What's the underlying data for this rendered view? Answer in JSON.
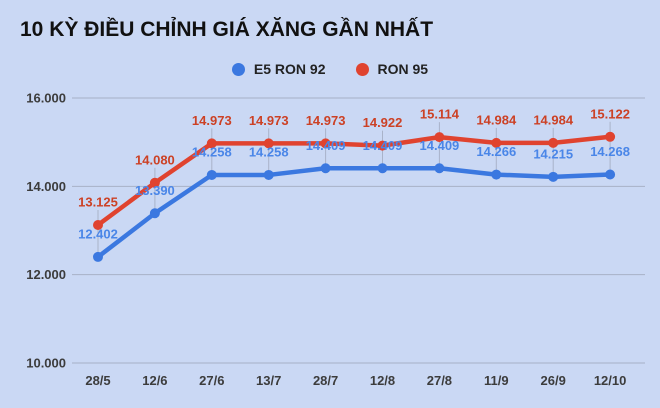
{
  "title": "10 KỲ ĐIỀU CHỈNH GIÁ XĂNG GẦN NHẤT",
  "colors": {
    "background": "#cad8f4",
    "gridline": "#a7b1c6",
    "dropline": "#a9b3c9",
    "axis_text": "#3c3c3c",
    "title_text": "#111111",
    "legend_text": "#222222"
  },
  "chart_data": {
    "type": "line",
    "title": "10 KỲ ĐIỀU CHỈNH GIÁ XĂNG GẦN NHẤT",
    "categories": [
      "28/5",
      "12/6",
      "27/6",
      "13/7",
      "28/7",
      "12/8",
      "27/8",
      "11/9",
      "26/9",
      "12/10"
    ],
    "series": [
      {
        "name": "E5 RON 92",
        "color": "#3b78e0",
        "label_color": "#4a86e8",
        "values": [
          12402,
          13390,
          14258,
          14258,
          14409,
          14409,
          14409,
          14266,
          14215,
          14268
        ],
        "labels": [
          "12.402",
          "13.390",
          "14.258",
          "14.258",
          "14.409",
          "14.409",
          "14.409",
          "14.266",
          "14.215",
          "14.268"
        ]
      },
      {
        "name": "RON 95",
        "color": "#e0432f",
        "label_color": "#cc4125",
        "values": [
          13125,
          14080,
          14973,
          14973,
          14973,
          14922,
          15114,
          14984,
          14984,
          15122
        ],
        "labels": [
          "13.125",
          "14.080",
          "14.973",
          "14.973",
          "14.973",
          "14.922",
          "15.114",
          "14.984",
          "14.984",
          "15.122"
        ]
      }
    ],
    "yticks": [
      {
        "value": 10000,
        "label": "10.000"
      },
      {
        "value": 12000,
        "label": "12.000"
      },
      {
        "value": 14000,
        "label": "14.000"
      },
      {
        "value": 16000,
        "label": "16.000"
      }
    ],
    "ylim": [
      10000,
      16000
    ],
    "grid": "horizontal",
    "legend_position": "top-center"
  }
}
